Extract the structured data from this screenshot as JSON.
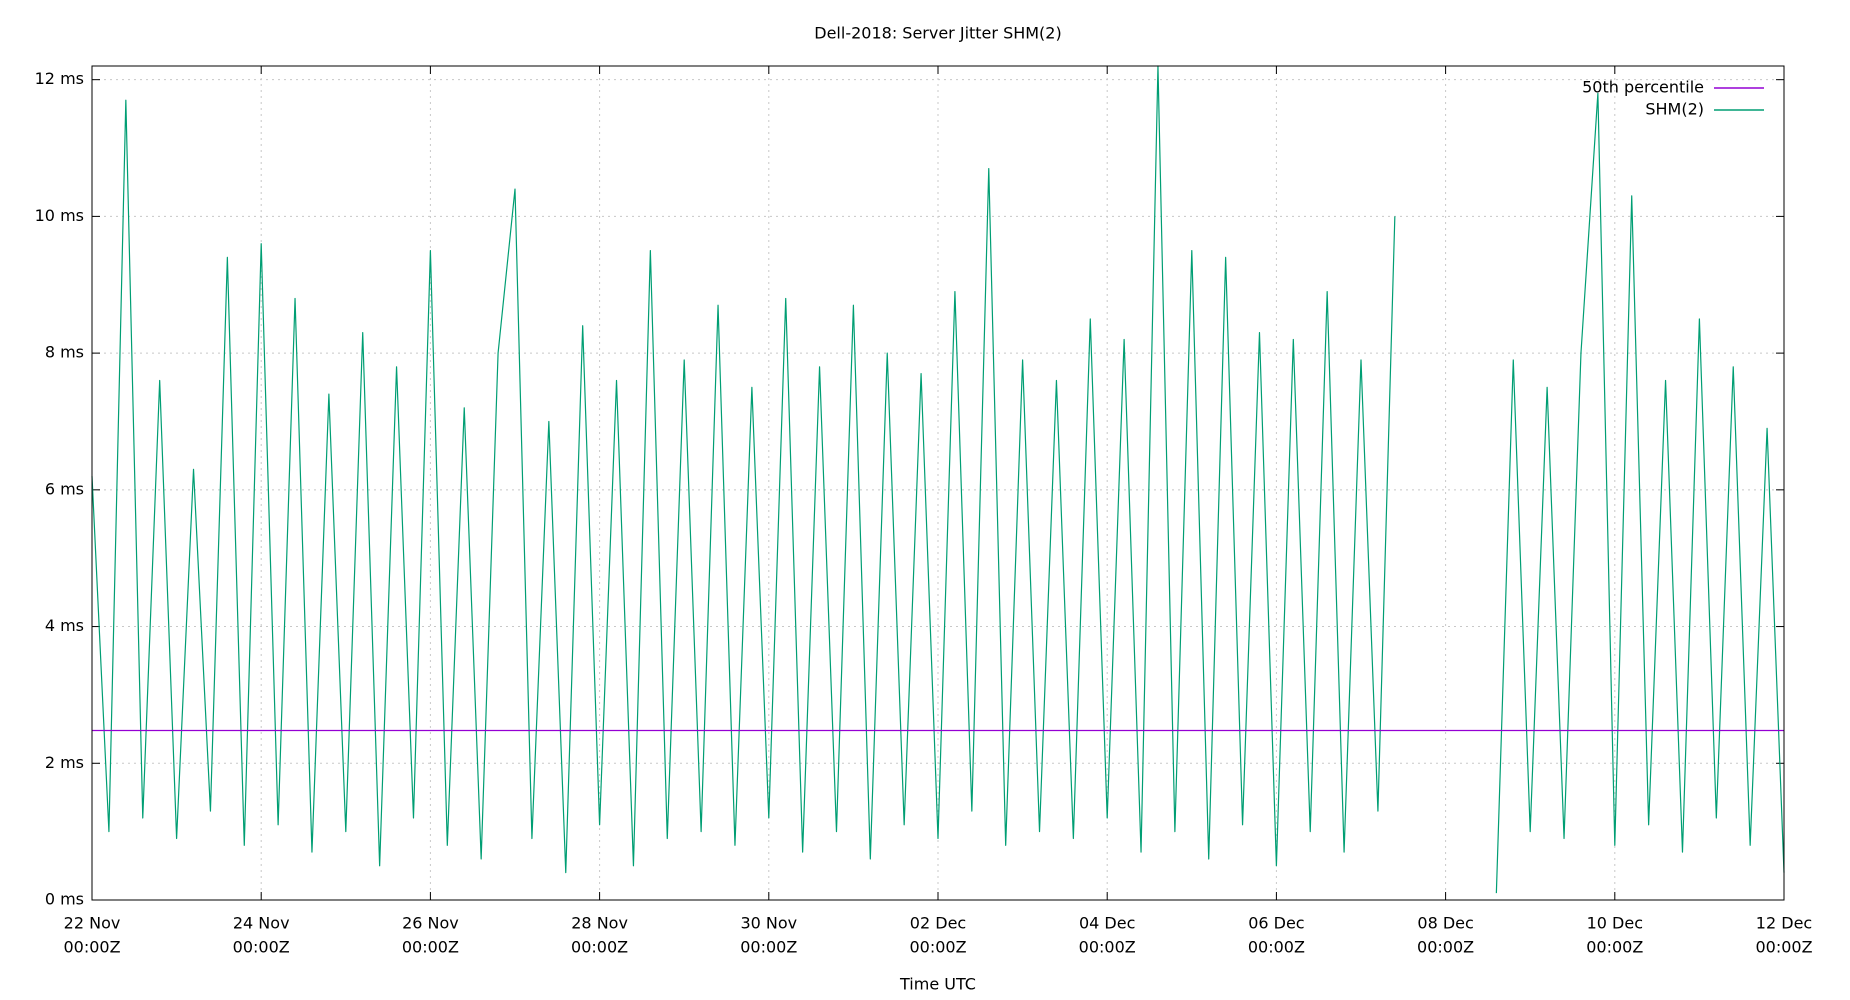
{
  "chart_data": {
    "type": "line",
    "title": "Dell-2018: Server Jitter SHM(2)",
    "x_label": "Time UTC",
    "xlim": [
      0,
      20
    ],
    "ylim": [
      0,
      12.2
    ],
    "xticks": [
      {
        "value": 0,
        "label": [
          "22 Nov",
          "00:00Z"
        ]
      },
      {
        "value": 2,
        "label": [
          "24 Nov",
          "00:00Z"
        ]
      },
      {
        "value": 4,
        "label": [
          "26 Nov",
          "00:00Z"
        ]
      },
      {
        "value": 6,
        "label": [
          "28 Nov",
          "00:00Z"
        ]
      },
      {
        "value": 8,
        "label": [
          "30 Nov",
          "00:00Z"
        ]
      },
      {
        "value": 10,
        "label": [
          "02 Dec",
          "00:00Z"
        ]
      },
      {
        "value": 12,
        "label": [
          "04 Dec",
          "00:00Z"
        ]
      },
      {
        "value": 14,
        "label": [
          "06 Dec",
          "00:00Z"
        ]
      },
      {
        "value": 16,
        "label": [
          "08 Dec",
          "00:00Z"
        ]
      },
      {
        "value": 18,
        "label": [
          "10 Dec",
          "00:00Z"
        ]
      },
      {
        "value": 20,
        "label": [
          "12 Dec",
          "00:00Z"
        ]
      }
    ],
    "yticks": [
      {
        "value": 0,
        "label": "0 ms"
      },
      {
        "value": 2,
        "label": "2 ms"
      },
      {
        "value": 4,
        "label": "4 ms"
      },
      {
        "value": 6,
        "label": "6 ms"
      },
      {
        "value": 8,
        "label": "8 ms"
      },
      {
        "value": 10,
        "label": "10 ms"
      },
      {
        "value": 12,
        "label": "12 ms"
      }
    ],
    "grid": true,
    "legend": "top-right",
    "series": [
      {
        "name": "50th percentile",
        "color": "#9400d3",
        "x": [
          0,
          20
        ],
        "values": [
          2.48,
          2.48
        ]
      },
      {
        "name": "SHM(2)",
        "color": "#009e73",
        "x": [
          0,
          0.2,
          0.4,
          0.6,
          0.8,
          1.0,
          1.2,
          1.4,
          1.6,
          1.8,
          2.0,
          2.2,
          2.4,
          2.6,
          2.8,
          3.0,
          3.2,
          3.4,
          3.6,
          3.8,
          4.0,
          4.2,
          4.4,
          4.6,
          4.8,
          5.0,
          5.2,
          5.4,
          5.6,
          5.8,
          6.0,
          6.2,
          6.4,
          6.6,
          6.8,
          7.0,
          7.2,
          7.4,
          7.6,
          7.8,
          8.0,
          8.2,
          8.4,
          8.6,
          8.8,
          9.0,
          9.2,
          9.4,
          9.6,
          9.8,
          10.0,
          10.2,
          10.4,
          10.6,
          10.8,
          11.0,
          11.2,
          11.4,
          11.6,
          11.8,
          12.0,
          12.2,
          12.4,
          12.6,
          12.8,
          13.0,
          13.2,
          13.4,
          13.6,
          13.8,
          14.0,
          14.2,
          14.4,
          14.6,
          14.8,
          15.0,
          15.2,
          15.4,
          16.0,
          16.6,
          16.8,
          17.0,
          17.2,
          17.4,
          17.6,
          17.8,
          18.0,
          18.2,
          18.4,
          18.6,
          18.8,
          19.0,
          19.2,
          19.4,
          19.6,
          19.8,
          20.0
        ],
        "values": [
          6.2,
          1.0,
          11.7,
          1.2,
          7.6,
          0.9,
          6.3,
          1.3,
          9.4,
          0.8,
          9.6,
          1.1,
          8.8,
          0.7,
          7.4,
          1.0,
          8.3,
          0.5,
          7.8,
          1.2,
          9.5,
          0.8,
          7.2,
          0.6,
          8.0,
          10.4,
          0.9,
          7.0,
          0.4,
          8.4,
          1.1,
          7.6,
          0.5,
          9.5,
          0.9,
          7.9,
          1.0,
          8.7,
          0.8,
          7.5,
          1.2,
          8.8,
          0.7,
          7.8,
          1.0,
          8.7,
          0.6,
          8.0,
          1.1,
          7.7,
          0.9,
          8.9,
          1.3,
          10.7,
          0.8,
          7.9,
          1.0,
          7.6,
          0.9,
          8.5,
          1.2,
          8.2,
          0.7,
          12.2,
          1.0,
          9.5,
          0.6,
          9.4,
          1.1,
          8.3,
          0.5,
          8.2,
          1.0,
          8.9,
          0.7,
          7.9,
          1.3,
          10.0,
          null,
          0.1,
          7.9,
          1.0,
          7.5,
          0.9,
          8.0,
          11.8,
          0.8,
          10.3,
          1.1,
          7.6,
          0.7,
          8.5,
          1.2,
          7.8,
          0.8,
          6.9,
          0.4
        ]
      }
    ]
  }
}
